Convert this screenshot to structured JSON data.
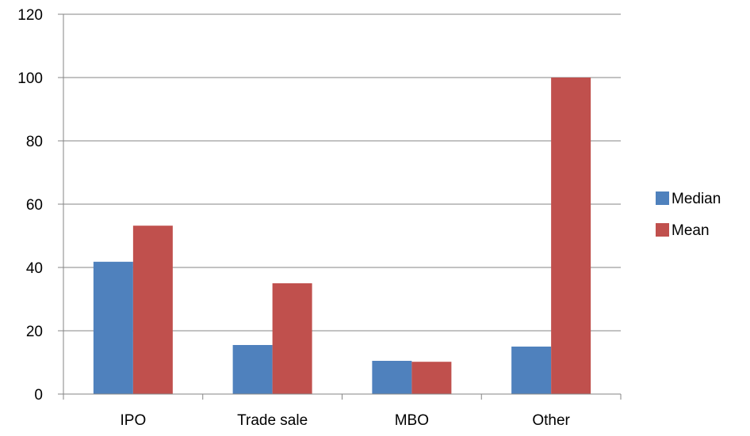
{
  "chart_data": {
    "type": "bar",
    "title": "",
    "xlabel": "",
    "ylabel": "",
    "categories": [
      "IPO",
      "Trade sale",
      "MBO",
      "Other"
    ],
    "series": [
      {
        "name": "Median",
        "color": "#4F81BD",
        "values": [
          41.8,
          15.5,
          10.5,
          15.0
        ]
      },
      {
        "name": "Mean",
        "color": "#C0504D",
        "values": [
          53.2,
          35.0,
          10.2,
          100.0
        ]
      }
    ],
    "ylim": [
      0,
      120
    ],
    "yticks": [
      "0",
      "20",
      "40",
      "60",
      "80",
      "100",
      "120"
    ],
    "grid": true,
    "legend_position": "right"
  }
}
